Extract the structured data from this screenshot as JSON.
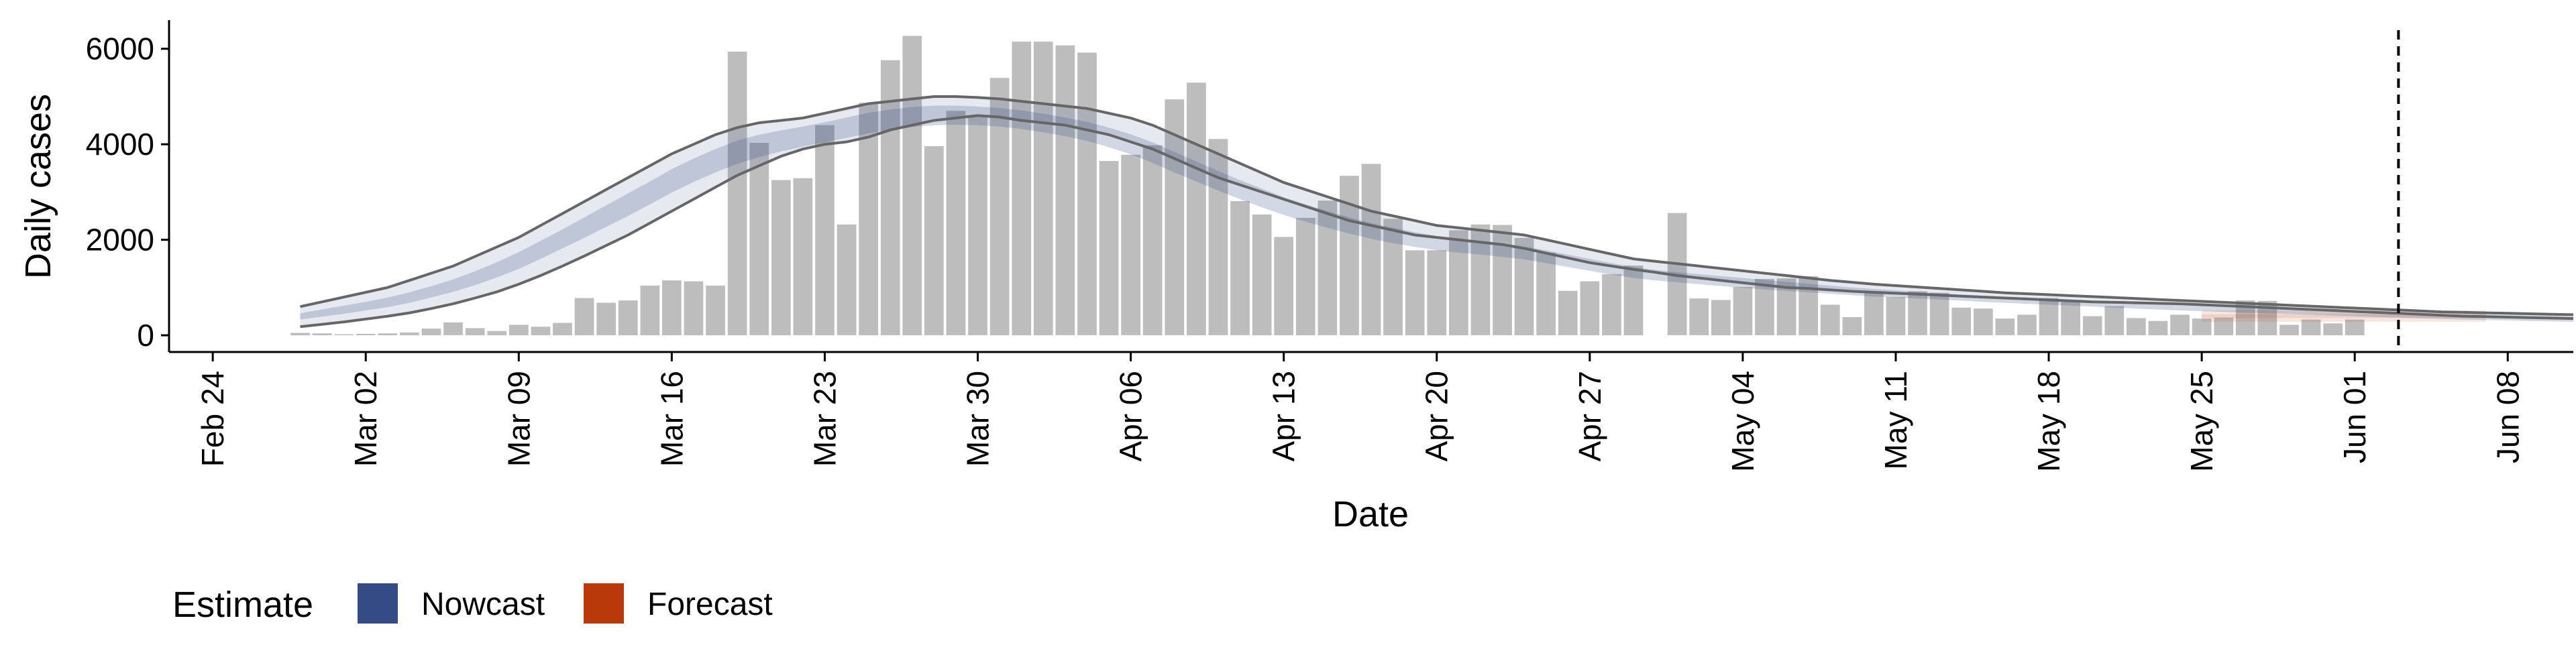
{
  "chart_data": {
    "type": "bar",
    "title": "",
    "xlabel": "Date",
    "ylabel": "Daily cases",
    "x_range": [
      "2020-02-22",
      "2020-06-11"
    ],
    "ylim": [
      -350,
      6600
    ],
    "y_ticks": [
      0,
      2000,
      4000,
      6000
    ],
    "x_ticks": [
      {
        "date": "2020-02-24",
        "label": "Feb 24"
      },
      {
        "date": "2020-03-02",
        "label": "Mar 02"
      },
      {
        "date": "2020-03-09",
        "label": "Mar 09"
      },
      {
        "date": "2020-03-16",
        "label": "Mar 16"
      },
      {
        "date": "2020-03-23",
        "label": "Mar 23"
      },
      {
        "date": "2020-03-30",
        "label": "Mar 30"
      },
      {
        "date": "2020-04-06",
        "label": "Apr 06"
      },
      {
        "date": "2020-04-13",
        "label": "Apr 13"
      },
      {
        "date": "2020-04-20",
        "label": "Apr 20"
      },
      {
        "date": "2020-04-27",
        "label": "Apr 27"
      },
      {
        "date": "2020-05-04",
        "label": "May 04"
      },
      {
        "date": "2020-05-11",
        "label": "May 11"
      },
      {
        "date": "2020-05-18",
        "label": "May 18"
      },
      {
        "date": "2020-05-25",
        "label": "May 25"
      },
      {
        "date": "2020-06-01",
        "label": "Jun 01"
      },
      {
        "date": "2020-06-08",
        "label": "Jun 08"
      }
    ],
    "grid": false,
    "legend_position": "bottom-left",
    "colors": {
      "bars": "#bdbdbd",
      "nowcast": "#344b85",
      "forecast": "#b83a0a",
      "band_outer_line": "#666666",
      "vline": "#000000"
    },
    "reference_line_date": "2020-06-03",
    "legend": {
      "title": "Estimate",
      "items": [
        {
          "label": "Nowcast",
          "color": "#344b85"
        },
        {
          "label": "Forecast",
          "color": "#b83a0a"
        }
      ]
    },
    "bars": {
      "start_date": "2020-02-27",
      "values": [
        0,
        50,
        40,
        20,
        30,
        40,
        60,
        140,
        270,
        150,
        90,
        220,
        180,
        260,
        780,
        680,
        730,
        1040,
        1150,
        1130,
        1040,
        5940,
        4030,
        3250,
        3290,
        4400,
        2320,
        4870,
        5760,
        6270,
        3960,
        4700,
        4600,
        5390,
        6150,
        6150,
        6070,
        5920,
        3650,
        3780,
        3980,
        4940,
        5290,
        4110,
        2810,
        2530,
        2060,
        2460,
        2820,
        3340,
        3590,
        2440,
        1780,
        1780,
        2200,
        2320,
        2310,
        2040,
        1730,
        930,
        1130,
        1280,
        1460,
        0,
        2560,
        770,
        740,
        1010,
        1180,
        1190,
        1240,
        640,
        380,
        920,
        800,
        920,
        890,
        580,
        560,
        350,
        430,
        780,
        730,
        400,
        610,
        360,
        300,
        430,
        350,
        370,
        730,
        720,
        220,
        330,
        250,
        330
      ]
    },
    "nowcast": {
      "start_date": "2020-02-28",
      "outer_upper": [
        600,
        700,
        800,
        900,
        1000,
        1150,
        1300,
        1450,
        1650,
        1850,
        2050,
        2300,
        2550,
        2800,
        3050,
        3300,
        3550,
        3800,
        4000,
        4200,
        4350,
        4450,
        4500,
        4550,
        4650,
        4750,
        4850,
        4900,
        4950,
        5000,
        5000,
        4980,
        4950,
        4900,
        4850,
        4800,
        4750,
        4650,
        4550,
        4400,
        4200,
        4000,
        3800,
        3600,
        3400,
        3200,
        3050,
        2900,
        2750,
        2600,
        2500,
        2400,
        2300,
        2250,
        2200,
        2150,
        2100,
        2000,
        1900,
        1800,
        1700,
        1600,
        1550,
        1500,
        1450,
        1400,
        1350,
        1300,
        1250,
        1200,
        1150,
        1110,
        1070,
        1040,
        1010,
        980,
        950,
        920,
        890,
        870,
        850,
        830,
        810,
        790,
        770,
        750,
        730,
        710,
        690,
        670,
        650,
        630,
        610,
        590,
        570,
        550,
        530,
        510,
        490,
        480,
        470,
        460,
        450,
        440,
        430
      ],
      "inner_upper": [
        460,
        540,
        620,
        700,
        790,
        900,
        1030,
        1170,
        1340,
        1530,
        1740,
        1980,
        2220,
        2470,
        2720,
        2970,
        3220,
        3480,
        3700,
        3900,
        4080,
        4200,
        4290,
        4370,
        4460,
        4560,
        4660,
        4730,
        4780,
        4810,
        4810,
        4790,
        4760,
        4710,
        4640,
        4560,
        4470,
        4350,
        4210,
        4040,
        3840,
        3640,
        3440,
        3250,
        3070,
        2890,
        2740,
        2600,
        2470,
        2350,
        2250,
        2160,
        2080,
        2020,
        1970,
        1920,
        1860,
        1780,
        1690,
        1600,
        1510,
        1430,
        1370,
        1320,
        1280,
        1240,
        1200,
        1160,
        1120,
        1080,
        1040,
        1000,
        970,
        940,
        910,
        880,
        855,
        830,
        805,
        780,
        760,
        740,
        720,
        700,
        680,
        660,
        640,
        620,
        600,
        580,
        565,
        550,
        535,
        520,
        505,
        490,
        475,
        460,
        445,
        435,
        425,
        415,
        405,
        395,
        385
      ],
      "inner_lower": [
        330,
        390,
        450,
        520,
        590,
        680,
        790,
        910,
        1050,
        1210,
        1390,
        1600,
        1820,
        2040,
        2270,
        2500,
        2740,
        2990,
        3210,
        3410,
        3590,
        3730,
        3850,
        3950,
        4040,
        4130,
        4230,
        4300,
        4360,
        4400,
        4410,
        4400,
        4370,
        4320,
        4250,
        4170,
        4070,
        3940,
        3790,
        3610,
        3410,
        3220,
        3030,
        2850,
        2680,
        2520,
        2380,
        2250,
        2130,
        2020,
        1930,
        1850,
        1780,
        1730,
        1690,
        1640,
        1590,
        1510,
        1430,
        1350,
        1270,
        1200,
        1150,
        1110,
        1070,
        1030,
        995,
        960,
        930,
        900,
        870,
        840,
        810,
        790,
        770,
        750,
        725,
        700,
        680,
        660,
        640,
        620,
        600,
        580,
        560,
        540,
        520,
        505,
        490,
        475,
        460,
        445,
        430,
        415,
        400,
        385,
        370,
        355,
        340,
        330,
        320,
        310,
        300,
        290,
        280
      ],
      "outer_lower": [
        180,
        230,
        280,
        340,
        400,
        470,
        560,
        660,
        780,
        910,
        1070,
        1250,
        1450,
        1660,
        1880,
        2100,
        2350,
        2600,
        2850,
        3100,
        3350,
        3550,
        3750,
        3900,
        4000,
        4050,
        4150,
        4300,
        4400,
        4500,
        4550,
        4600,
        4570,
        4500,
        4450,
        4400,
        4300,
        4200,
        4050,
        3900,
        3700,
        3500,
        3300,
        3150,
        3000,
        2850,
        2700,
        2550,
        2400,
        2300,
        2200,
        2100,
        2050,
        2000,
        1950,
        1900,
        1820,
        1720,
        1620,
        1520,
        1450,
        1380,
        1320,
        1250,
        1200,
        1150,
        1100,
        1050,
        1000,
        980,
        950,
        920,
        900,
        880,
        860,
        840,
        820,
        800,
        780,
        760,
        740,
        720,
        700,
        690,
        680,
        670,
        660,
        640,
        620,
        600,
        580,
        560,
        540,
        520,
        500,
        480,
        460,
        440,
        420,
        400,
        390,
        380,
        370,
        360,
        350
      ]
    },
    "forecast": {
      "start_date": "2020-05-25",
      "end_date": "2020-06-07",
      "lower": 280,
      "upper": 520,
      "mid_lower": 360,
      "mid_upper": 440
    }
  }
}
